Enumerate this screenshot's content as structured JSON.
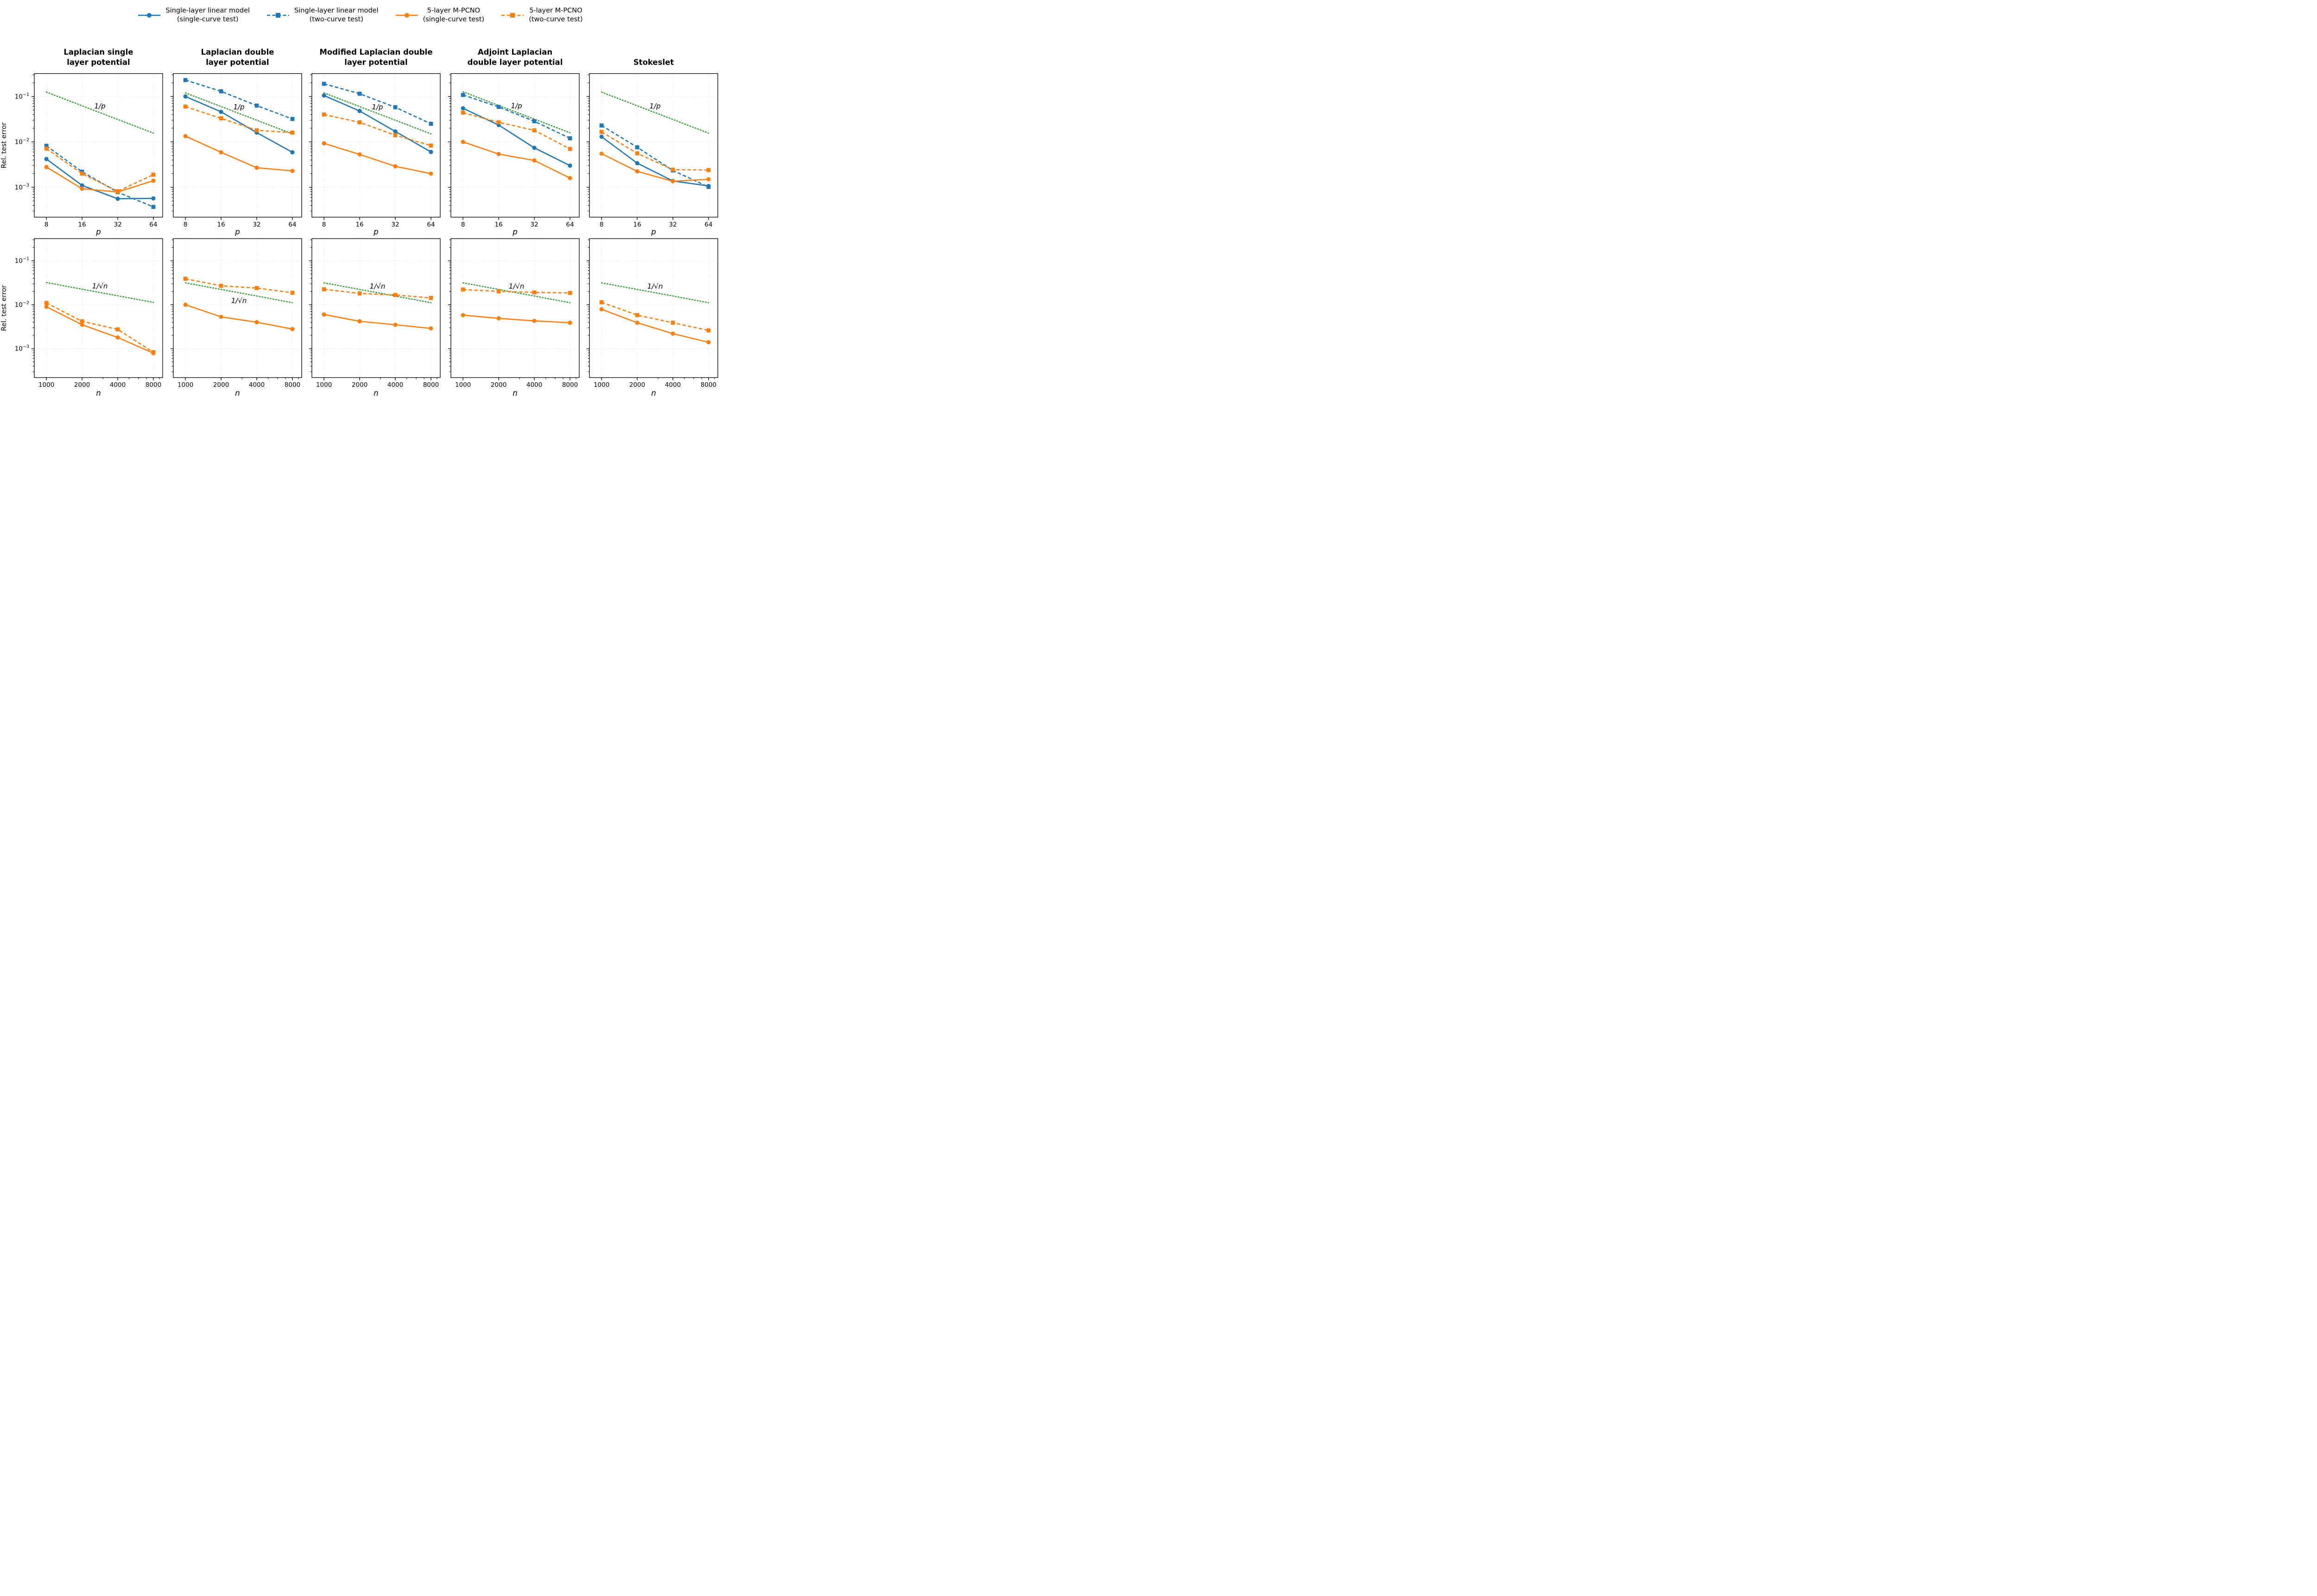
{
  "figure": {
    "ylabel": "Rel. test error"
  },
  "colors": {
    "blue": "#1f77b4",
    "orange": "#ff7f0e",
    "green": "#2ca02c",
    "grid": "#d9d9d9",
    "spine": "#000000"
  },
  "legend": {
    "items": [
      {
        "label_lines": [
          "Single-layer linear model",
          "(single-curve test)"
        ],
        "color": "#1f77b4",
        "line": "solid",
        "marker": "circle"
      },
      {
        "label_lines": [
          "Single-layer linear model",
          "(two-curve test)"
        ],
        "color": "#1f77b4",
        "line": "dashed",
        "marker": "square"
      },
      {
        "label_lines": [
          "5-layer M-PCNO",
          "(single-curve test)"
        ],
        "color": "#ff7f0e",
        "line": "solid",
        "marker": "circle"
      },
      {
        "label_lines": [
          "5-layer M-PCNO",
          "(two-curve test)"
        ],
        "color": "#ff7f0e",
        "line": "dashed",
        "marker": "square"
      }
    ]
  },
  "axis": {
    "ylim": [
      0.00022,
      0.32
    ],
    "y_ticks": [
      {
        "base": "10",
        "exp": "−1",
        "value": 0.1
      },
      {
        "base": "10",
        "exp": "−2",
        "value": 0.01
      },
      {
        "base": "10",
        "exp": "−3",
        "value": 0.001
      }
    ]
  },
  "chart_data": [
    {
      "id": "laplacian-single-layer-p",
      "type": "line",
      "row": 0,
      "col": 0,
      "title_lines": [
        "Laplacian single",
        "layer potential"
      ],
      "xlabel": "p",
      "x": [
        8,
        16,
        32,
        64
      ],
      "x_tick_labels": [
        "8",
        "16",
        "32",
        "64"
      ],
      "x_minor": [],
      "show_y_labels": true,
      "series": [
        {
          "name": "Single-layer linear model (single-curve test)",
          "color": "#1f77b4",
          "line": "solid",
          "marker": "circle",
          "values": [
            0.0042,
            0.0011,
            0.00056,
            0.00057
          ]
        },
        {
          "name": "Single-layer linear model (two-curve test)",
          "color": "#1f77b4",
          "line": "dashed",
          "marker": "square",
          "values": [
            0.0082,
            0.0022,
            0.00078,
            0.00037
          ]
        },
        {
          "name": "5-layer M-PCNO (single-curve test)",
          "color": "#ff7f0e",
          "line": "solid",
          "marker": "circle",
          "values": [
            0.0028,
            0.00093,
            0.00079,
            0.0014
          ]
        },
        {
          "name": "5-layer M-PCNO (two-curve test)",
          "color": "#ff7f0e",
          "line": "dashed",
          "marker": "square",
          "values": [
            0.0071,
            0.002,
            0.00082,
            0.0019
          ]
        }
      ],
      "guide": {
        "label": "1/p",
        "color": "#2ca02c",
        "values": [
          0.125,
          0.0625,
          0.03125,
          0.015625
        ],
        "label_side": "above"
      }
    },
    {
      "id": "laplacian-double-layer-p",
      "type": "line",
      "row": 0,
      "col": 1,
      "title_lines": [
        "Laplacian double",
        "layer potential"
      ],
      "xlabel": "p",
      "x": [
        8,
        16,
        32,
        64
      ],
      "x_tick_labels": [
        "8",
        "16",
        "32",
        "64"
      ],
      "x_minor": [],
      "show_y_labels": false,
      "series": [
        {
          "name": "Single-layer linear model (single-curve test)",
          "color": "#1f77b4",
          "line": "solid",
          "marker": "circle",
          "values": [
            0.1,
            0.046,
            0.016,
            0.0059
          ]
        },
        {
          "name": "Single-layer linear model (two-curve test)",
          "color": "#1f77b4",
          "line": "dashed",
          "marker": "square",
          "values": [
            0.23,
            0.13,
            0.063,
            0.032
          ]
        },
        {
          "name": "5-layer M-PCNO (single-curve test)",
          "color": "#ff7f0e",
          "line": "solid",
          "marker": "circle",
          "values": [
            0.0134,
            0.0059,
            0.0027,
            0.0023
          ]
        },
        {
          "name": "5-layer M-PCNO (two-curve test)",
          "color": "#ff7f0e",
          "line": "dashed",
          "marker": "square",
          "values": [
            0.06,
            0.033,
            0.018,
            0.016
          ]
        }
      ],
      "guide": {
        "label": "1/p",
        "color": "#2ca02c",
        "values": [
          0.12,
          0.06,
          0.03,
          0.015
        ],
        "label_side": "above"
      }
    },
    {
      "id": "modified-laplacian-double-layer-p",
      "type": "line",
      "row": 0,
      "col": 2,
      "title_lines": [
        "Modified Laplacian double",
        "layer potential"
      ],
      "xlabel": "p",
      "x": [
        8,
        16,
        32,
        64
      ],
      "x_tick_labels": [
        "8",
        "16",
        "32",
        "64"
      ],
      "x_minor": [],
      "show_y_labels": false,
      "series": [
        {
          "name": "Single-layer linear model (single-curve test)",
          "color": "#1f77b4",
          "line": "solid",
          "marker": "circle",
          "values": [
            0.105,
            0.048,
            0.017,
            0.006
          ]
        },
        {
          "name": "Single-layer linear model (two-curve test)",
          "color": "#1f77b4",
          "line": "dashed",
          "marker": "square",
          "values": [
            0.19,
            0.115,
            0.058,
            0.025
          ]
        },
        {
          "name": "5-layer M-PCNO (single-curve test)",
          "color": "#ff7f0e",
          "line": "solid",
          "marker": "circle",
          "values": [
            0.0093,
            0.0053,
            0.0029,
            0.002
          ]
        },
        {
          "name": "5-layer M-PCNO (two-curve test)",
          "color": "#ff7f0e",
          "line": "dashed",
          "marker": "square",
          "values": [
            0.04,
            0.027,
            0.014,
            0.0083
          ]
        }
      ],
      "guide": {
        "label": "1/p",
        "color": "#2ca02c",
        "values": [
          0.12,
          0.06,
          0.03,
          0.015
        ],
        "label_side": "above"
      }
    },
    {
      "id": "adjoint-laplacian-double-layer-p",
      "type": "line",
      "row": 0,
      "col": 3,
      "title_lines": [
        "Adjoint Laplacian",
        "double layer potential"
      ],
      "xlabel": "p",
      "x": [
        8,
        16,
        32,
        64
      ],
      "x_tick_labels": [
        "8",
        "16",
        "32",
        "64"
      ],
      "x_minor": [],
      "show_y_labels": false,
      "series": [
        {
          "name": "Single-layer linear model (single-curve test)",
          "color": "#1f77b4",
          "line": "solid",
          "marker": "circle",
          "values": [
            0.055,
            0.0235,
            0.0074,
            0.003
          ]
        },
        {
          "name": "Single-layer linear model (two-curve test)",
          "color": "#1f77b4",
          "line": "dashed",
          "marker": "square",
          "values": [
            0.108,
            0.059,
            0.0285,
            0.012
          ]
        },
        {
          "name": "5-layer M-PCNO (single-curve test)",
          "color": "#ff7f0e",
          "line": "solid",
          "marker": "circle",
          "values": [
            0.01,
            0.0054,
            0.0039,
            0.0016
          ]
        },
        {
          "name": "5-layer M-PCNO (two-curve test)",
          "color": "#ff7f0e",
          "line": "dashed",
          "marker": "square",
          "values": [
            0.044,
            0.027,
            0.018,
            0.007
          ]
        }
      ],
      "guide": {
        "label": "1/p",
        "color": "#2ca02c",
        "values": [
          0.127,
          0.0635,
          0.03175,
          0.015875
        ],
        "label_side": "above"
      }
    },
    {
      "id": "stokeslet-p",
      "type": "line",
      "row": 0,
      "col": 4,
      "title_lines": [
        "Stokeslet"
      ],
      "xlabel": "p",
      "x": [
        8,
        16,
        32,
        64
      ],
      "x_tick_labels": [
        "8",
        "16",
        "32",
        "64"
      ],
      "x_minor": [],
      "show_y_labels": false,
      "series": [
        {
          "name": "Single-layer linear model (single-curve test)",
          "color": "#1f77b4",
          "line": "solid",
          "marker": "circle",
          "values": [
            0.013,
            0.0034,
            0.00138,
            0.00107
          ]
        },
        {
          "name": "Single-layer linear model (two-curve test)",
          "color": "#1f77b4",
          "line": "dashed",
          "marker": "square",
          "values": [
            0.023,
            0.0076,
            0.00235,
            0.00102
          ]
        },
        {
          "name": "5-layer M-PCNO (single-curve test)",
          "color": "#ff7f0e",
          "line": "solid",
          "marker": "circle",
          "values": [
            0.0055,
            0.00225,
            0.00136,
            0.0015
          ]
        },
        {
          "name": "5-layer M-PCNO (two-curve test)",
          "color": "#ff7f0e",
          "line": "dashed",
          "marker": "square",
          "values": [
            0.0166,
            0.0056,
            0.00245,
            0.0024
          ]
        }
      ],
      "guide": {
        "label": "1/p",
        "color": "#2ca02c",
        "values": [
          0.125,
          0.0625,
          0.03125,
          0.015625
        ],
        "label_side": "above"
      }
    },
    {
      "id": "laplacian-single-layer-n",
      "type": "line",
      "row": 1,
      "col": 0,
      "title_lines": [],
      "xlabel": "n",
      "x": [
        1000,
        2000,
        4000,
        8000
      ],
      "x_tick_labels": [
        "1000",
        "2000",
        "4000",
        "8000"
      ],
      "x_minor": [
        3000,
        5000,
        6000,
        7000,
        9000
      ],
      "show_y_labels": true,
      "series": [
        {
          "name": "5-layer M-PCNO (single-curve test)",
          "color": "#ff7f0e",
          "line": "solid",
          "marker": "circle",
          "values": [
            0.009,
            0.0035,
            0.0018,
            0.00079
          ]
        },
        {
          "name": "5-layer M-PCNO (two-curve test)",
          "color": "#ff7f0e",
          "line": "dashed",
          "marker": "square",
          "values": [
            0.011,
            0.0042,
            0.00275,
            0.00083
          ]
        }
      ],
      "guide": {
        "label": "1/√n",
        "color": "#2ca02c",
        "values": [
          0.032,
          0.0226,
          0.016,
          0.0113
        ],
        "label_side": "above"
      }
    },
    {
      "id": "laplacian-double-layer-n",
      "type": "line",
      "row": 1,
      "col": 1,
      "title_lines": [],
      "xlabel": "n",
      "x": [
        1000,
        2000,
        4000,
        8000
      ],
      "x_tick_labels": [
        "1000",
        "2000",
        "4000",
        "8000"
      ],
      "x_minor": [
        3000,
        5000,
        6000,
        7000,
        9000
      ],
      "show_y_labels": false,
      "series": [
        {
          "name": "5-layer M-PCNO (single-curve test)",
          "color": "#ff7f0e",
          "line": "solid",
          "marker": "circle",
          "values": [
            0.01,
            0.0053,
            0.004,
            0.0028
          ]
        },
        {
          "name": "5-layer M-PCNO (two-curve test)",
          "color": "#ff7f0e",
          "line": "dashed",
          "marker": "square",
          "values": [
            0.039,
            0.027,
            0.024,
            0.0187
          ]
        }
      ],
      "guide": {
        "label": "1/√n",
        "color": "#2ca02c",
        "values": [
          0.0315,
          0.0223,
          0.0158,
          0.0111
        ],
        "label_side": "below"
      }
    },
    {
      "id": "modified-laplacian-double-layer-n",
      "type": "line",
      "row": 1,
      "col": 2,
      "title_lines": [],
      "xlabel": "n",
      "x": [
        1000,
        2000,
        4000,
        8000
      ],
      "x_tick_labels": [
        "1000",
        "2000",
        "4000",
        "8000"
      ],
      "x_minor": [
        3000,
        5000,
        6000,
        7000,
        9000
      ],
      "show_y_labels": false,
      "series": [
        {
          "name": "5-layer M-PCNO (single-curve test)",
          "color": "#ff7f0e",
          "line": "solid",
          "marker": "circle",
          "values": [
            0.006,
            0.0042,
            0.0035,
            0.0029
          ]
        },
        {
          "name": "5-layer M-PCNO (two-curve test)",
          "color": "#ff7f0e",
          "line": "dashed",
          "marker": "square",
          "values": [
            0.0225,
            0.0181,
            0.0167,
            0.0143
          ]
        }
      ],
      "guide": {
        "label": "1/√n",
        "color": "#2ca02c",
        "values": [
          0.0315,
          0.0223,
          0.0158,
          0.0111
        ],
        "label_side": "above"
      }
    },
    {
      "id": "adjoint-laplacian-double-layer-n",
      "type": "line",
      "row": 1,
      "col": 3,
      "title_lines": [],
      "xlabel": "n",
      "x": [
        1000,
        2000,
        4000,
        8000
      ],
      "x_tick_labels": [
        "1000",
        "2000",
        "4000",
        "8000"
      ],
      "x_minor": [
        3000,
        5000,
        6000,
        7000,
        9000
      ],
      "show_y_labels": false,
      "series": [
        {
          "name": "5-layer M-PCNO (single-curve test)",
          "color": "#ff7f0e",
          "line": "solid",
          "marker": "circle",
          "values": [
            0.0058,
            0.0049,
            0.0043,
            0.0039
          ]
        },
        {
          "name": "5-layer M-PCNO (two-curve test)",
          "color": "#ff7f0e",
          "line": "dashed",
          "marker": "square",
          "values": [
            0.0222,
            0.0202,
            0.0191,
            0.0186
          ]
        }
      ],
      "guide": {
        "label": "1/√n",
        "color": "#2ca02c",
        "values": [
          0.0315,
          0.0223,
          0.0158,
          0.0111
        ],
        "label_side": "above"
      }
    },
    {
      "id": "stokeslet-n",
      "type": "line",
      "row": 1,
      "col": 4,
      "title_lines": [],
      "xlabel": "n",
      "x": [
        1000,
        2000,
        4000,
        8000
      ],
      "x_tick_labels": [
        "1000",
        "2000",
        "4000",
        "8000"
      ],
      "x_minor": [
        3000,
        5000,
        6000,
        7000,
        9000
      ],
      "show_y_labels": false,
      "series": [
        {
          "name": "5-layer M-PCNO (single-curve test)",
          "color": "#ff7f0e",
          "line": "solid",
          "marker": "circle",
          "values": [
            0.0079,
            0.0039,
            0.0022,
            0.0014
          ]
        },
        {
          "name": "5-layer M-PCNO (two-curve test)",
          "color": "#ff7f0e",
          "line": "dashed",
          "marker": "square",
          "values": [
            0.0114,
            0.0058,
            0.0039,
            0.0026
          ]
        }
      ],
      "guide": {
        "label": "1/√n",
        "color": "#2ca02c",
        "values": [
          0.0315,
          0.0223,
          0.0158,
          0.0111
        ],
        "label_side": "above"
      }
    }
  ]
}
